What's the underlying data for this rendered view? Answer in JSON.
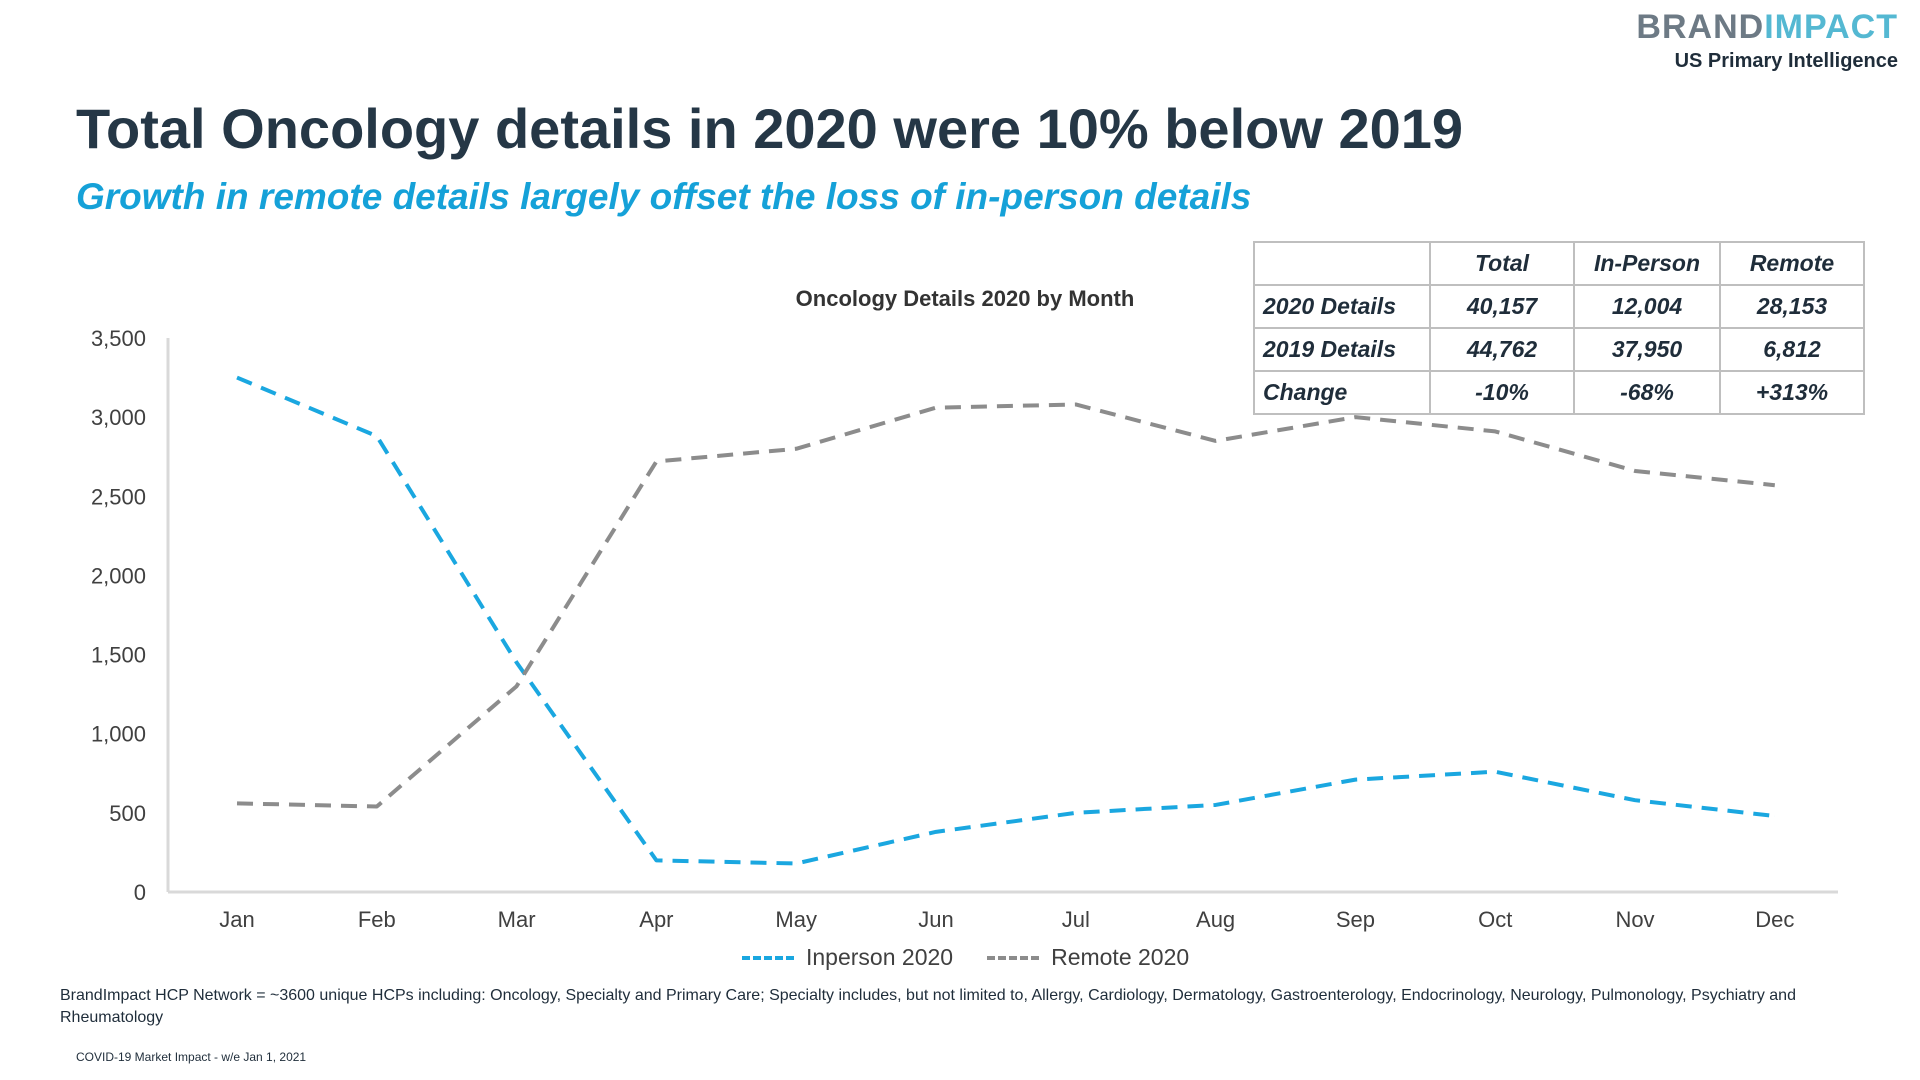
{
  "brand": {
    "logo_part1": "BRAND",
    "logo_part2": "IMPACT",
    "subtitle": "US Primary Intelligence"
  },
  "slide": {
    "title": "Total Oncology details in 2020 were 10% below 2019",
    "subtitle": "Growth in remote details largely offset the loss of in-person details",
    "footnote": "BrandImpact HCP Network = ~3600 unique HCPs including: Oncology, Specialty and Primary Care; Specialty includes, but not limited to, Allergy, Cardiology, Dermatology, Gastroenterology, Endocrinology, Neurology, Pulmonology, Psychiatry and Rheumatology",
    "source": "COVID-19 Market Impact - w/e Jan 1, 2021"
  },
  "summary_table": {
    "headers": [
      "",
      "Total",
      "In-Person",
      "Remote"
    ],
    "rows": [
      [
        "2020 Details",
        "40,157",
        "12,004",
        "28,153"
      ],
      [
        "2019 Details",
        "44,762",
        "37,950",
        "6,812"
      ],
      [
        "Change",
        "-10%",
        "-68%",
        "+313%"
      ]
    ]
  },
  "chart_data": {
    "type": "line",
    "title": "Oncology Details 2020 by Month",
    "xlabel": "",
    "ylabel": "",
    "categories": [
      "Jan",
      "Feb",
      "Mar",
      "Apr",
      "May",
      "Jun",
      "Jul",
      "Aug",
      "Sep",
      "Oct",
      "Nov",
      "Dec"
    ],
    "ylim": [
      0,
      3500
    ],
    "yticks": [
      0,
      500,
      1000,
      1500,
      2000,
      2500,
      3000,
      3500
    ],
    "ytick_labels": [
      "0",
      "500",
      "1,000",
      "1,500",
      "2,000",
      "2,500",
      "3,000",
      "3,500"
    ],
    "grid": false,
    "legend_position": "bottom",
    "line_style": "dashed",
    "series": [
      {
        "name": "Inperson 2020",
        "color": "#1aa7e0",
        "values": [
          3250,
          2880,
          1450,
          200,
          180,
          380,
          500,
          550,
          710,
          760,
          580,
          480
        ]
      },
      {
        "name": "Remote 2020",
        "color": "#8c8c8c",
        "values": [
          560,
          540,
          1300,
          2720,
          2800,
          3060,
          3080,
          2850,
          3000,
          2910,
          2660,
          2570
        ]
      }
    ]
  }
}
